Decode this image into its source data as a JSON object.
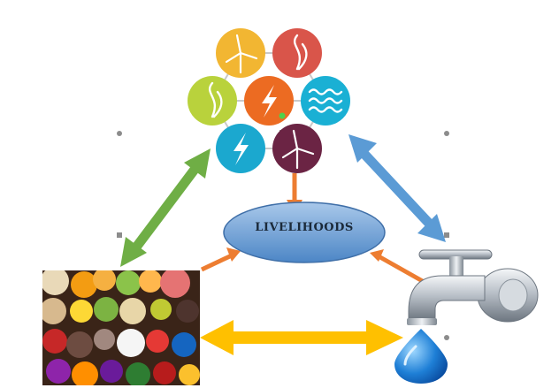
{
  "center_label": "LIVELIHOODS",
  "energy_cluster": {
    "cells": [
      {
        "icon": "wind-turbine-icon",
        "color": "#f2b632"
      },
      {
        "icon": "flame-icon",
        "color": "#d9554a"
      },
      {
        "icon": "flame-icon",
        "color": "#b9d23c"
      },
      {
        "icon": "lightning-icon",
        "color": "#ec6b22"
      },
      {
        "icon": "waves-icon",
        "color": "#1ab0d4"
      },
      {
        "icon": "lightning-icon",
        "color": "#1ba8cf"
      },
      {
        "icon": "wind-turbine-icon",
        "color": "#6b2444"
      }
    ]
  },
  "food_image": {
    "icon": "fresh-produce-icon"
  },
  "water_image": {
    "icon": "water-tap-icon"
  },
  "colors": {
    "energy_food_arrow": "#6fae45",
    "energy_water_arrow": "#5b9bd5",
    "food_water_arrow": "#ffc000",
    "to_livelihoods_arrow": "#ed7d31",
    "ellipse_fill_top": "#a9c8ea",
    "ellipse_fill_bottom": "#4c86c6"
  }
}
